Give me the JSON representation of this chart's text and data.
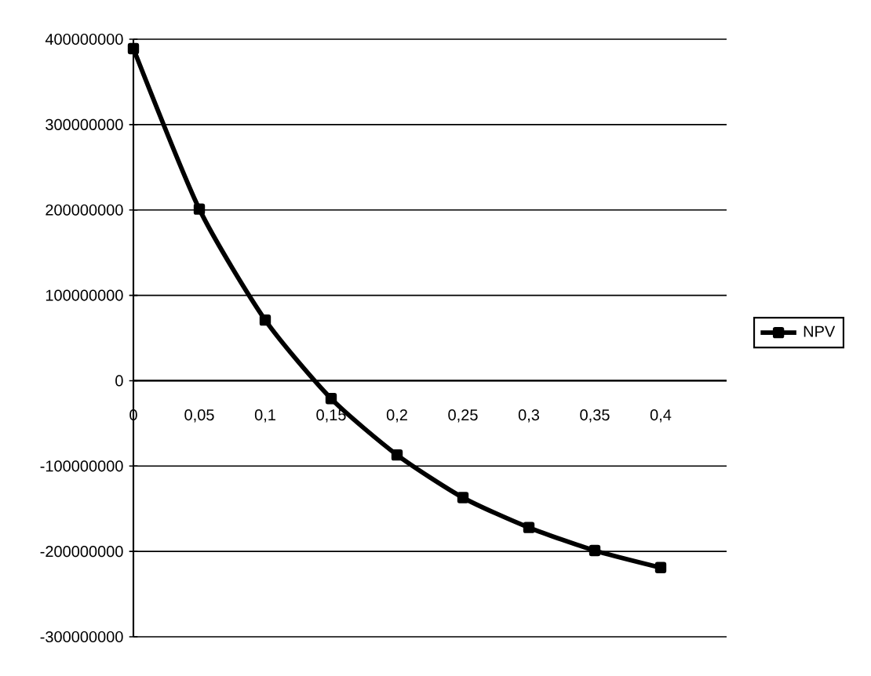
{
  "chart_data": {
    "type": "line",
    "categories": [
      "0",
      "0,05",
      "0,1",
      "0,15",
      "0,2",
      "0,25",
      "0,3",
      "0,35",
      "0,4"
    ],
    "series": [
      {
        "name": "NPV",
        "color": "#000000",
        "values": [
          389000000,
          201000000,
          71000000,
          -21000000,
          -87000000,
          -137000000,
          -172000000,
          -199000000,
          -219000000
        ]
      }
    ],
    "ylim": [
      -300000000,
      400000000
    ],
    "yticks": [
      -300000000,
      -200000000,
      -100000000,
      0,
      100000000,
      200000000,
      300000000,
      400000000
    ],
    "grid": "y",
    "legend": "right",
    "marker": "square",
    "line_style": "solid"
  }
}
